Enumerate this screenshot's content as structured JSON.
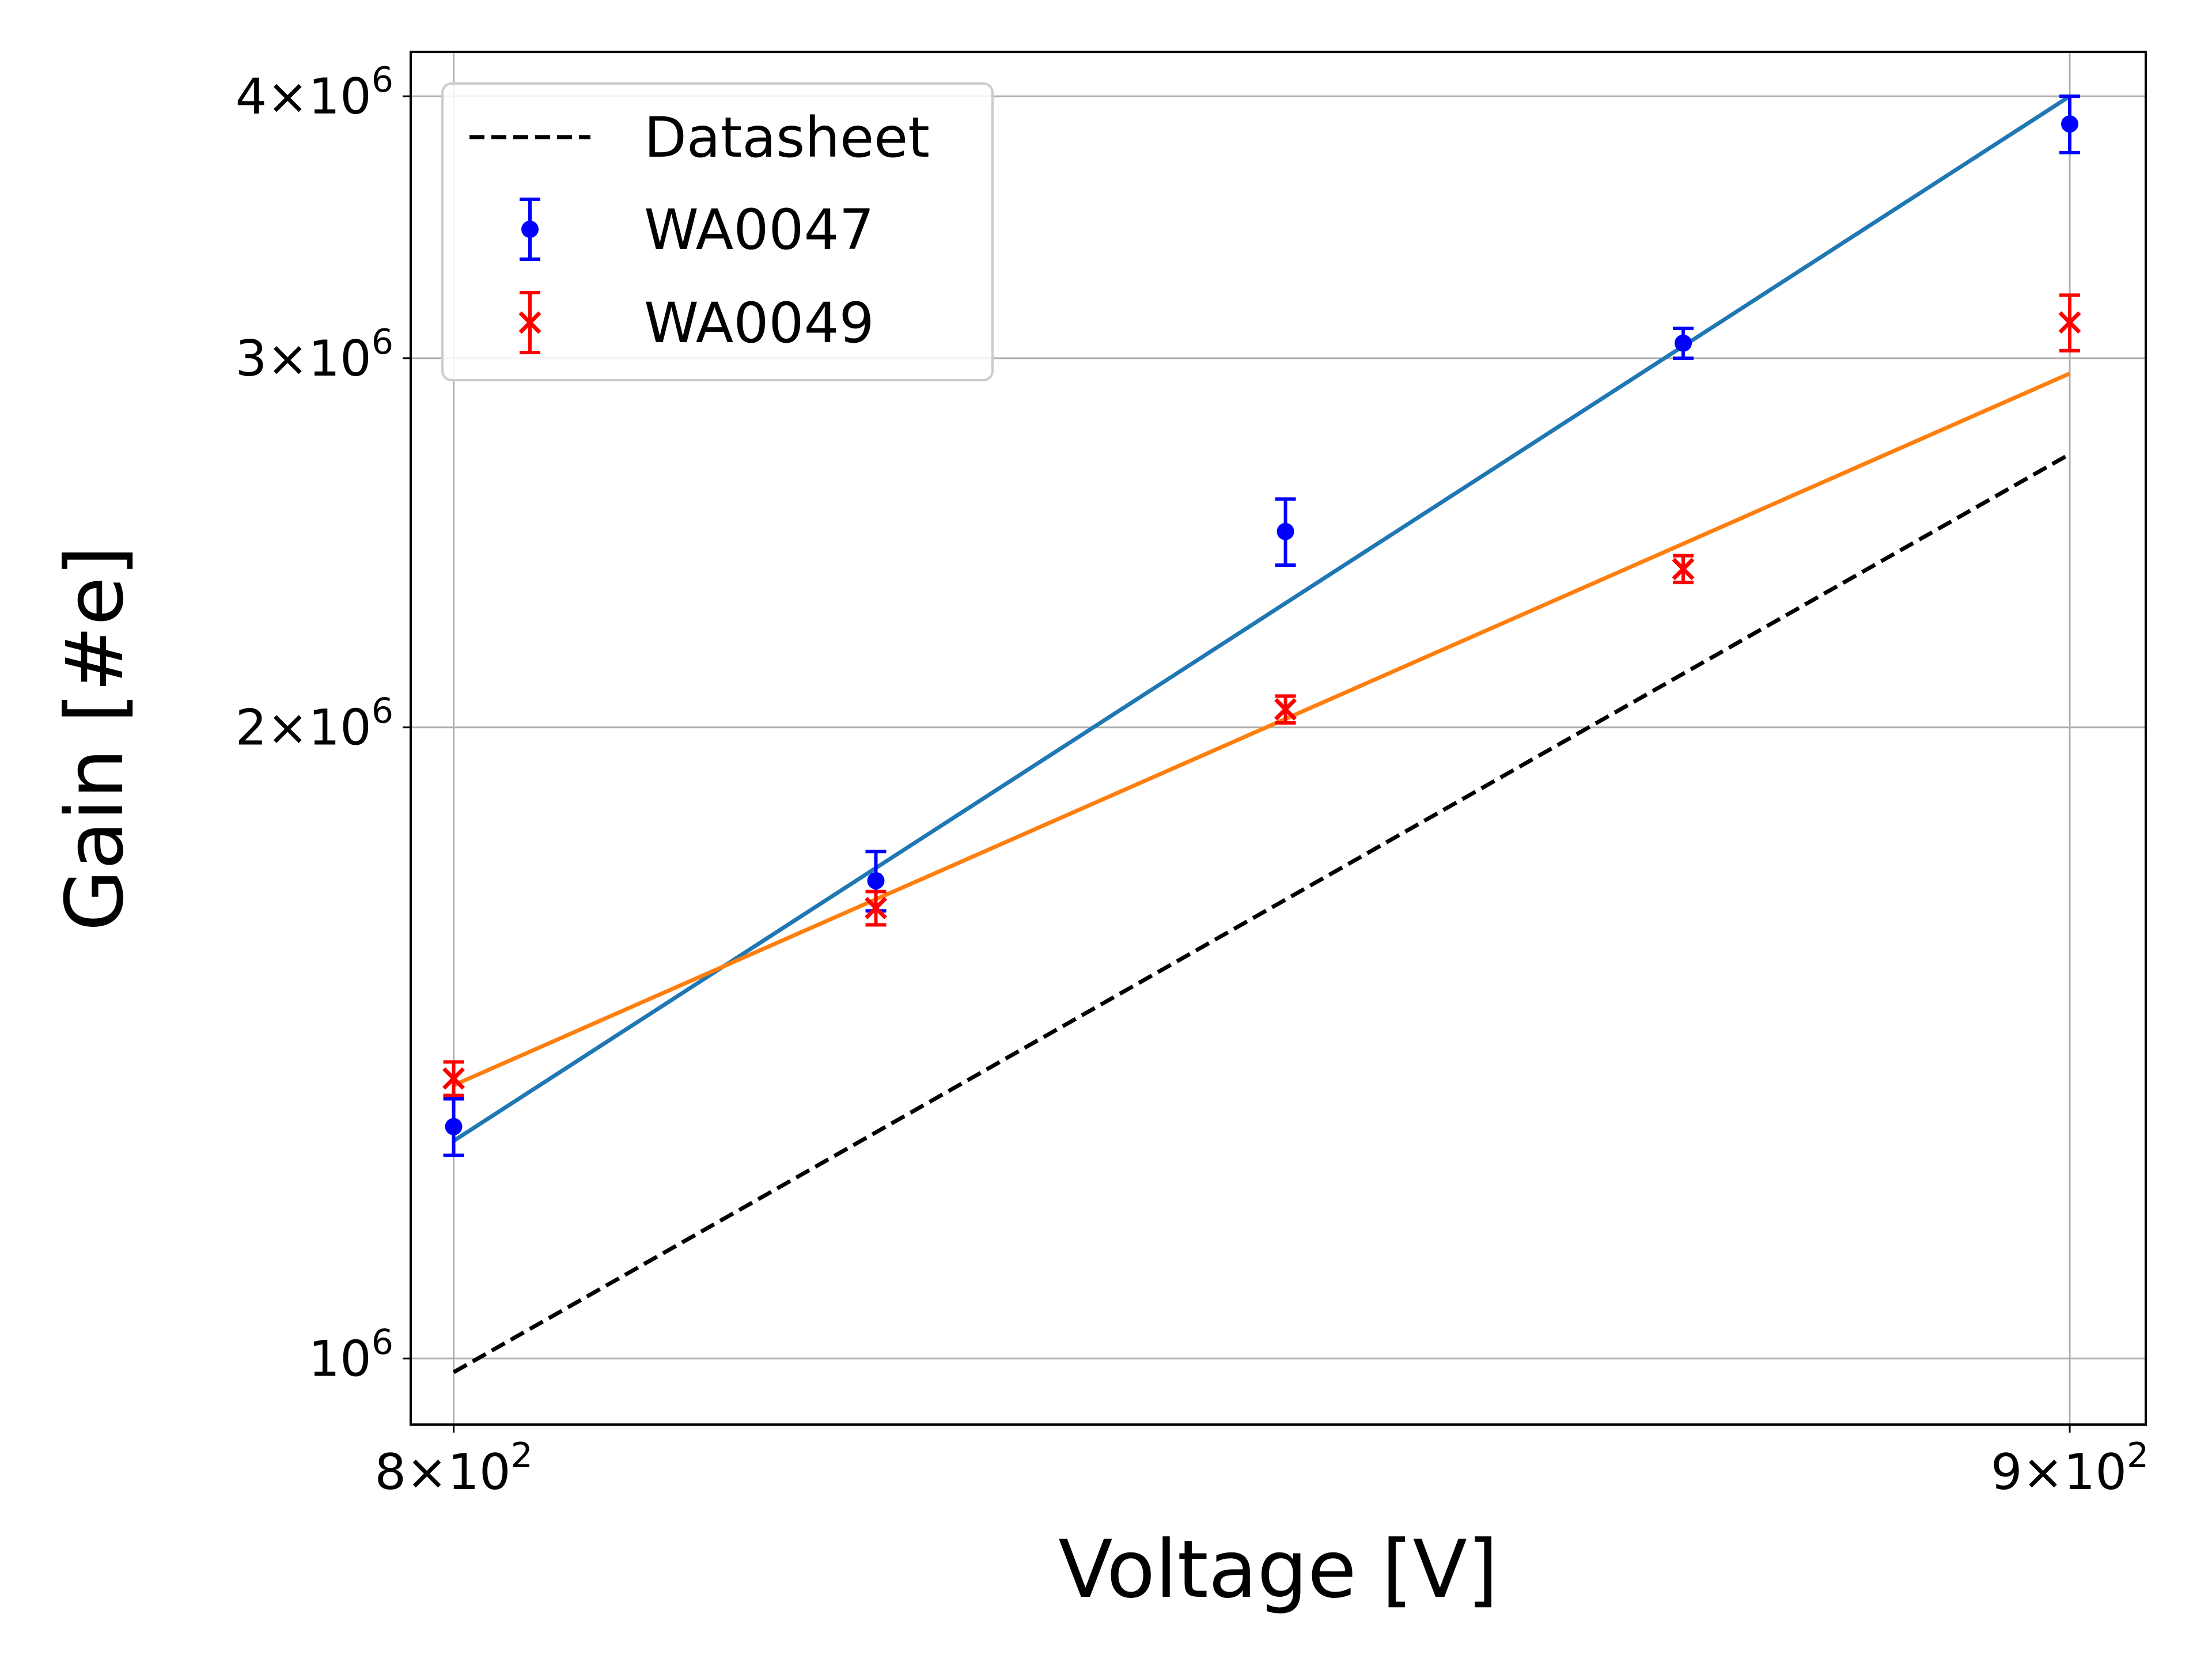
{
  "chart_data": {
    "type": "scatter",
    "xlabel": "Voltage [V]",
    "ylabel": "Gain [#e]",
    "xscale": "log",
    "yscale": "log",
    "xlim": [
      797.5,
      905
    ],
    "ylim": [
      930000,
      4200000
    ],
    "grid": true,
    "legend_position": "top-left",
    "xticks": [
      {
        "value": 800,
        "mantissa": "8",
        "base": "10",
        "exp": "2"
      },
      {
        "value": 900,
        "mantissa": "9",
        "base": "10",
        "exp": "2"
      }
    ],
    "yticks": [
      {
        "value": 1000000,
        "mantissa": "",
        "base": "10",
        "exp": "6"
      },
      {
        "value": 2000000,
        "mantissa": "2",
        "base": "10",
        "exp": "6"
      },
      {
        "value": 3000000,
        "mantissa": "3",
        "base": "10",
        "exp": "6"
      },
      {
        "value": 4000000,
        "mantissa": "4",
        "base": "10",
        "exp": "6"
      }
    ],
    "times_symbol": "×",
    "series": [
      {
        "name": "Datasheet",
        "style": "dashed-line",
        "color": "#000000",
        "x": [
          800,
          900
        ],
        "y": [
          985000,
          2700000
        ]
      },
      {
        "name": "WA0047",
        "style": "errorbar-dot",
        "color": "#0000ff",
        "x": [
          800,
          825,
          850,
          875,
          900
        ],
        "y": [
          1290000,
          1690000,
          2480000,
          3050000,
          3880000
        ],
        "yerr": [
          40000,
          55000,
          90000,
          50000,
          120000
        ]
      },
      {
        "name": "WA0049",
        "style": "errorbar-x",
        "color": "#ff0000",
        "x": [
          800,
          825,
          850,
          875,
          900
        ],
        "y": [
          1360000,
          1640000,
          2040000,
          2380000,
          3120000
        ],
        "yerr": [
          25000,
          30000,
          30000,
          35000,
          95000
        ]
      }
    ],
    "fits": [
      {
        "color": "#1f77b4",
        "x": [
          800,
          900
        ],
        "y": [
          1270000,
          4000000
        ]
      },
      {
        "color": "#ff7f0e",
        "x": [
          800,
          900
        ],
        "y": [
          1350000,
          2950000
        ]
      }
    ]
  }
}
